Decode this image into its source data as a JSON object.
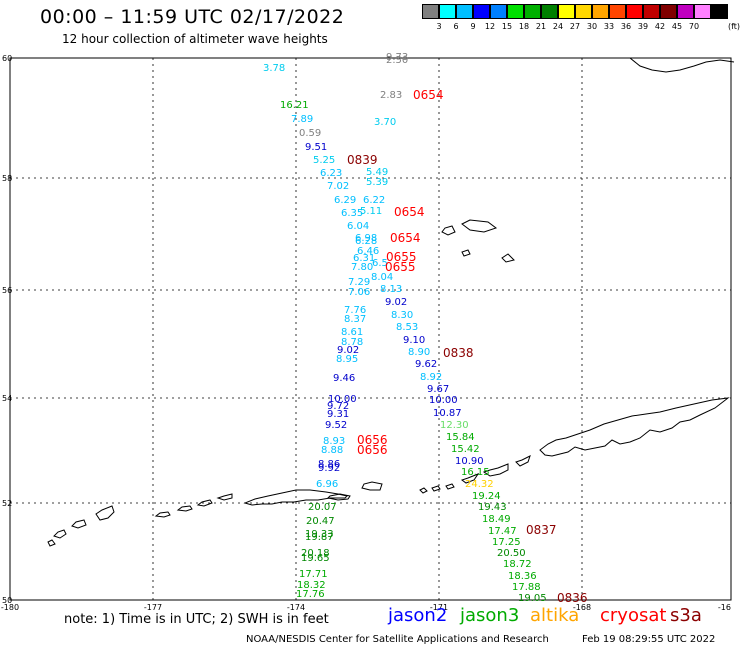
{
  "header": {
    "title": "00:00 – 11:59 UTC 02/17/2022",
    "subtitle": "12 hour collection of altimeter wave heights"
  },
  "colorbar": {
    "labels": [
      "3",
      "6",
      "9",
      "12",
      "15",
      "18",
      "21",
      "24",
      "27",
      "30",
      "33",
      "36",
      "39",
      "42",
      "45",
      "70"
    ],
    "unit": "(ft)",
    "colors": [
      "#808080",
      "#00ffff",
      "#00bfff",
      "#0000ff",
      "#0080ff",
      "#00e000",
      "#00b000",
      "#008000",
      "#ffff00",
      "#ffd700",
      "#ffa500",
      "#ff4500",
      "#ff0000",
      "#c00000",
      "#800000",
      "#c000c0",
      "#ff80ff",
      "#000000"
    ]
  },
  "map": {
    "lat_labels": [
      "60",
      "58",
      "56",
      "54",
      "52",
      "50"
    ],
    "lon_labels": [
      "-180",
      "-177",
      "-174",
      "-171",
      "-168",
      "-16"
    ],
    "wave_labels": [
      {
        "t": "9.73",
        "c": "#808080"
      },
      {
        "t": "2.50",
        "c": "#808080"
      },
      {
        "t": "3.78",
        "c": "#00ccee"
      },
      {
        "t": "2.83",
        "c": "#808080"
      },
      {
        "t": "3.70",
        "c": "#00ccee"
      },
      {
        "t": "16.21",
        "c": "#00aa00"
      },
      {
        "t": "7.89",
        "c": "#00bfff"
      },
      {
        "t": "0.59",
        "c": "#808080"
      },
      {
        "t": "9.51",
        "c": "#0000cc"
      },
      {
        "t": "5.25",
        "c": "#00ccee"
      },
      {
        "t": "6.23",
        "c": "#00bfff"
      },
      {
        "t": "5.49",
        "c": "#00ccee"
      },
      {
        "t": "5.39",
        "c": "#00ccee"
      },
      {
        "t": "7.02",
        "c": "#00bfff"
      },
      {
        "t": "6.29",
        "c": "#00bfff"
      },
      {
        "t": "6.22",
        "c": "#00bfff"
      },
      {
        "t": "6.35",
        "c": "#00bfff"
      },
      {
        "t": "5.11",
        "c": "#00ccee"
      },
      {
        "t": "6.04",
        "c": "#00bfff"
      },
      {
        "t": "6.98",
        "c": "#00bfff"
      },
      {
        "t": "6.28",
        "c": "#00bfff"
      },
      {
        "t": "6.46",
        "c": "#00bfff"
      },
      {
        "t": "6.31",
        "c": "#00bfff"
      },
      {
        "t": "7.80",
        "c": "#00bfff"
      },
      {
        "t": "6.5",
        "c": "#00bfff"
      },
      {
        "t": "8.04",
        "c": "#00bfff"
      },
      {
        "t": "7.29",
        "c": "#00bfff"
      },
      {
        "t": "7.06",
        "c": "#00bfff"
      },
      {
        "t": "8.13",
        "c": "#00bfff"
      },
      {
        "t": "9.02",
        "c": "#0000cc"
      },
      {
        "t": "7.76",
        "c": "#00bfff"
      },
      {
        "t": "8.37",
        "c": "#00bfff"
      },
      {
        "t": "8.30",
        "c": "#00bfff"
      },
      {
        "t": "8.53",
        "c": "#00bfff"
      },
      {
        "t": "8.61",
        "c": "#00bfff"
      },
      {
        "t": "8.78",
        "c": "#00bfff"
      },
      {
        "t": "9.10",
        "c": "#0000cc"
      },
      {
        "t": "9.02",
        "c": "#0000cc"
      },
      {
        "t": "8.90",
        "c": "#00bfff"
      },
      {
        "t": "8.95",
        "c": "#00bfff"
      },
      {
        "t": "9.62",
        "c": "#0000cc"
      },
      {
        "t": "8.92",
        "c": "#00bfff"
      },
      {
        "t": "9.46",
        "c": "#0000cc"
      },
      {
        "t": "9.67",
        "c": "#0000cc"
      },
      {
        "t": "10.00",
        "c": "#0000cc"
      },
      {
        "t": "10.00",
        "c": "#0000cc"
      },
      {
        "t": "9.72",
        "c": "#0000cc"
      },
      {
        "t": "9.31",
        "c": "#0000cc"
      },
      {
        "t": "10.87",
        "c": "#0000cc"
      },
      {
        "t": "9.52",
        "c": "#0000cc"
      },
      {
        "t": "12.30",
        "c": "#66dd66"
      },
      {
        "t": "8.93",
        "c": "#00bfff"
      },
      {
        "t": "15.84",
        "c": "#00aa00"
      },
      {
        "t": "8.88",
        "c": "#00bfff"
      },
      {
        "t": "15.42",
        "c": "#00aa00"
      },
      {
        "t": "8.86",
        "c": "#0000cc"
      },
      {
        "t": "9.92",
        "c": "#0000cc"
      },
      {
        "t": "10.90",
        "c": "#0000cc"
      },
      {
        "t": "16.15",
        "c": "#00aa00"
      },
      {
        "t": "6.96",
        "c": "#00bfff"
      },
      {
        "t": "24.32",
        "c": "#ffd000"
      },
      {
        "t": "19.24",
        "c": "#00aa00"
      },
      {
        "t": "20.07",
        "c": "#008800"
      },
      {
        "t": "19.43",
        "c": "#008800"
      },
      {
        "t": "20.47",
        "c": "#008800"
      },
      {
        "t": "18.49",
        "c": "#00aa00"
      },
      {
        "t": "19.33",
        "c": "#008800"
      },
      {
        "t": "19.87",
        "c": "#008800"
      },
      {
        "t": "17.47",
        "c": "#00aa00"
      },
      {
        "t": "17.25",
        "c": "#00aa00"
      },
      {
        "t": "20.18",
        "c": "#008800"
      },
      {
        "t": "19.65",
        "c": "#008800"
      },
      {
        "t": "20.50",
        "c": "#008800"
      },
      {
        "t": "18.72",
        "c": "#00aa00"
      },
      {
        "t": "17.71",
        "c": "#00aa00"
      },
      {
        "t": "18.36",
        "c": "#00aa00"
      },
      {
        "t": "18.32",
        "c": "#00aa00"
      },
      {
        "t": "17.88",
        "c": "#00aa00"
      },
      {
        "t": "17.76",
        "c": "#00aa00"
      },
      {
        "t": "19.05",
        "c": "#008800"
      }
    ],
    "pass_times": [
      {
        "t": "0654",
        "c": "#ff0000"
      },
      {
        "t": "0839",
        "c": "#8b0000"
      },
      {
        "t": "0654",
        "c": "#ff0000"
      },
      {
        "t": "0654",
        "c": "#ff0000"
      },
      {
        "t": "0655",
        "c": "#ff0000"
      },
      {
        "t": "0655",
        "c": "#ff0000"
      },
      {
        "t": "0838",
        "c": "#8b0000"
      },
      {
        "t": "0656",
        "c": "#ff0000"
      },
      {
        "t": "0656",
        "c": "#ff0000"
      },
      {
        "t": "0837",
        "c": "#8b0000"
      },
      {
        "t": "0836",
        "c": "#8b0000"
      }
    ]
  },
  "footer": {
    "note": "note:  1) Time is in UTC;  2) SWH is in feet",
    "legend": [
      {
        "label": "jason2",
        "color": "#0000ff"
      },
      {
        "label": "jason3",
        "color": "#00aa00"
      },
      {
        "label": "altika",
        "color": "#ffa500"
      },
      {
        "label": "cryosat",
        "color": "#ff0000"
      },
      {
        "label": "s3a",
        "color": "#8b0000"
      }
    ],
    "credit_left": "NOAA/NESDIS Center for Satellite Applications and Research",
    "credit_right": "Feb 19 08:29:55 UTC 2022"
  }
}
